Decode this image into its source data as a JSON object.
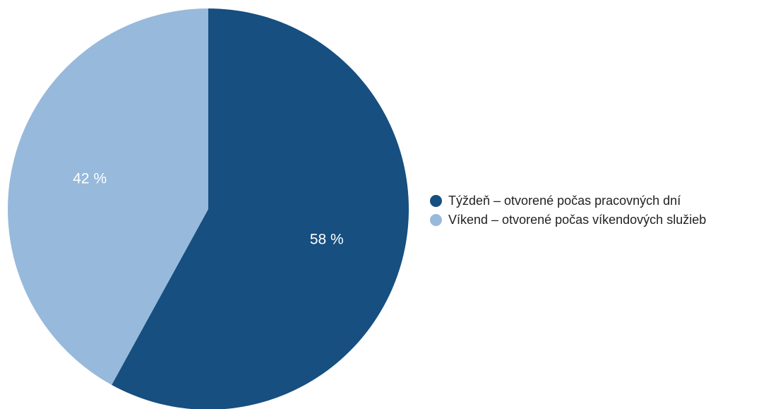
{
  "chart_data": {
    "type": "pie",
    "title": "",
    "categories": [
      "Týždeň – otvorené počas pracovných dní",
      "Víkend – otvorené počas víkendových služieb"
    ],
    "values": [
      58,
      42
    ],
    "value_labels": [
      "58 %",
      "42 %"
    ],
    "colors": [
      "#164f80",
      "#97b9db"
    ],
    "start_angle": "12 o'clock",
    "direction": "clockwise",
    "legend_position": "right"
  }
}
